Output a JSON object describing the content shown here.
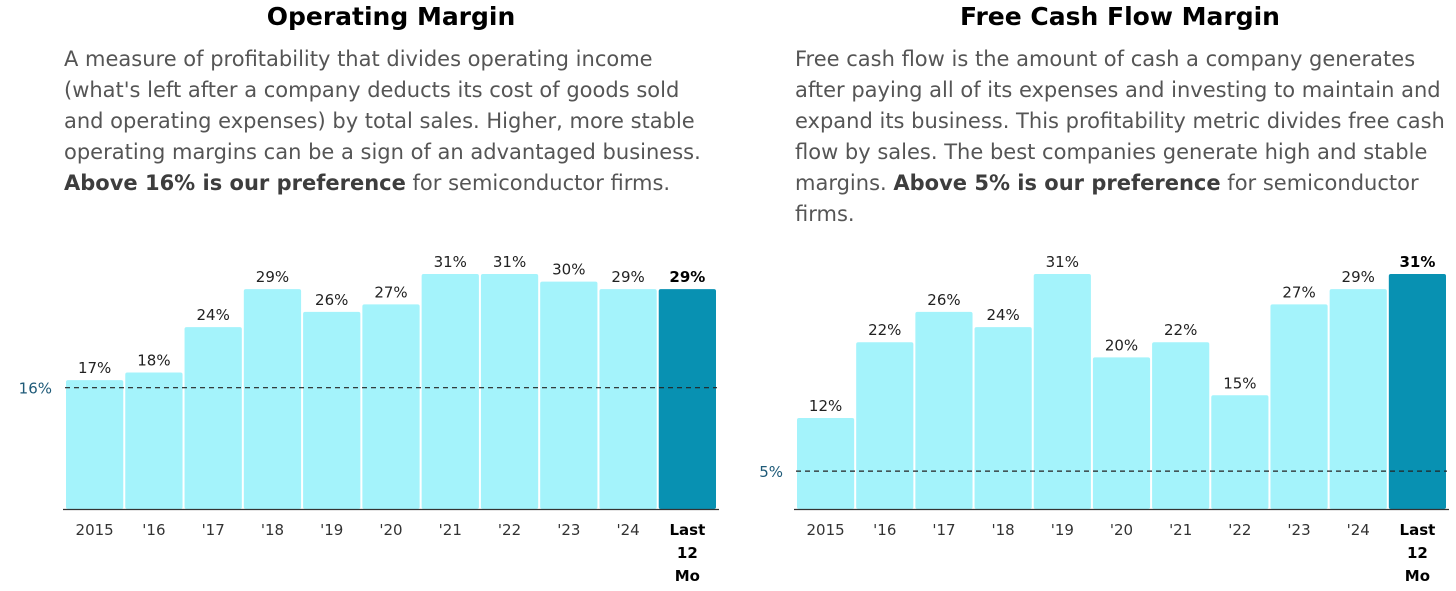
{
  "panels": [
    {
      "title": "Operating Margin",
      "description_text": "A measure of profitability that divides operating income (what's left after a company deducts its cost of goods sold and operating expenses) by total sales. Higher, more stable operating margins can be a sign of an advantaged business.",
      "preference_bold": "Above 16% is our preference",
      "preference_rest": "for semiconductor firms."
    },
    {
      "title": "Free Cash Flow Margin",
      "description_text": "Free cash flow is the amount of cash a company generates after paying all of its expenses and investing to maintain and expand its business. This profitability metric divides free cash flow by sales. The best companies generate high and stable margins.",
      "preference_bold": "Above 5% is our preference",
      "preference_rest": "for semiconductor firms."
    }
  ],
  "colors": {
    "bar": "#a4f3fb",
    "highlight": "#0891b2",
    "threshold_label": "#1e5a78"
  },
  "chart_data": [
    {
      "type": "bar",
      "title": "Operating Margin",
      "categories": [
        "2015",
        "'16",
        "'17",
        "'18",
        "'19",
        "'20",
        "'21",
        "'22",
        "'23",
        "'24",
        "Last 12 Mo"
      ],
      "values": [
        17,
        18,
        24,
        29,
        26,
        27,
        31,
        31,
        30,
        29,
        29
      ],
      "labels": [
        "17%",
        "18%",
        "24%",
        "29%",
        "26%",
        "27%",
        "31%",
        "31%",
        "30%",
        "29%",
        "29%"
      ],
      "highlight_index": 10,
      "threshold": 16,
      "threshold_label": "16%",
      "ylim": [
        0,
        31
      ],
      "grid": false
    },
    {
      "type": "bar",
      "title": "Free Cash Flow Margin",
      "categories": [
        "2015",
        "'16",
        "'17",
        "'18",
        "'19",
        "'20",
        "'21",
        "'22",
        "'23",
        "'24",
        "Last 12 Mo"
      ],
      "values": [
        12,
        22,
        26,
        24,
        31,
        20,
        22,
        15,
        27,
        29,
        31
      ],
      "labels": [
        "12%",
        "22%",
        "26%",
        "24%",
        "31%",
        "20%",
        "22%",
        "15%",
        "27%",
        "29%",
        "31%"
      ],
      "highlight_index": 10,
      "threshold": 5,
      "threshold_label": "5%",
      "ylim": [
        0,
        31
      ],
      "grid": false
    }
  ]
}
